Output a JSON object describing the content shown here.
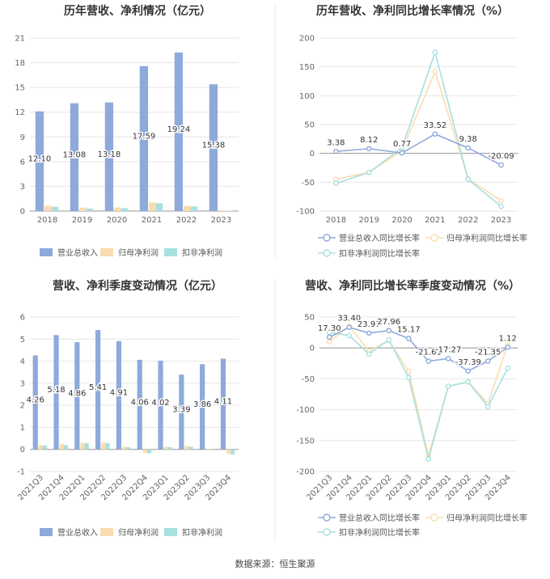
{
  "source": "数据来源：恒生聚源",
  "chart_data": [
    {
      "type": "bar",
      "title": "历年营收、净利情况（亿元）",
      "categories": [
        "2018",
        "2019",
        "2020",
        "2021",
        "2022",
        "2023"
      ],
      "series": [
        {
          "name": "营业总收入",
          "values": [
            12.1,
            13.08,
            13.18,
            17.59,
            19.24,
            15.38
          ],
          "color": "#8eaadb"
        },
        {
          "name": "归母净利润",
          "values": [
            0.65,
            0.42,
            0.45,
            1.05,
            0.62,
            0.08
          ],
          "color": "#fbdcae"
        },
        {
          "name": "扣非净利润",
          "values": [
            0.52,
            0.3,
            0.35,
            0.95,
            0.55,
            0.05
          ],
          "color": "#a7e0e0"
        }
      ],
      "data_labels": [
        "12.10",
        "13.08",
        "13.18",
        "17.59",
        "19.24",
        "15.38"
      ],
      "yticks": [
        0,
        3,
        6,
        9,
        12,
        15,
        18,
        21
      ],
      "ylim": [
        0,
        21
      ],
      "legend": "bottom"
    },
    {
      "type": "line",
      "title": "历年营收、净利同比增长率情况（%）",
      "categories": [
        "2018",
        "2019",
        "2020",
        "2021",
        "2022",
        "2023"
      ],
      "series": [
        {
          "name": "营业总收入同比增长率",
          "values": [
            3.38,
            8.12,
            0.77,
            33.52,
            9.38,
            -20.09
          ],
          "color": "#8eaadb"
        },
        {
          "name": "归母净利润同比增长率",
          "values": [
            -45,
            -33,
            5,
            142,
            -44,
            -82
          ],
          "color": "#fbdcae"
        },
        {
          "name": "扣非净利润同比增长率",
          "values": [
            -52,
            -33,
            10,
            175,
            -45,
            -92
          ],
          "color": "#a7e0e0"
        }
      ],
      "data_labels": [
        "3.38",
        "8.12",
        "0.77",
        "33.52",
        "9.38",
        "-20.09"
      ],
      "yticks": [
        -100,
        -50,
        0,
        50,
        100,
        150,
        200
      ],
      "ylim": [
        -100,
        200
      ],
      "legend": "bottom"
    },
    {
      "type": "bar",
      "title": "营收、净利季度变动情况（亿元）",
      "categories": [
        "2021Q3",
        "2021Q4",
        "2022Q1",
        "2022Q2",
        "2022Q3",
        "2022Q4",
        "2023Q1",
        "2023Q2",
        "2023Q3",
        "2023Q4"
      ],
      "series": [
        {
          "name": "营业总收入",
          "values": [
            4.26,
            5.18,
            4.86,
            5.41,
            4.91,
            4.06,
            4.02,
            3.39,
            3.86,
            4.11
          ],
          "color": "#8eaadb"
        },
        {
          "name": "归母净利润",
          "values": [
            0.2,
            0.24,
            0.3,
            0.3,
            0.12,
            -0.15,
            0.12,
            0.15,
            0.02,
            -0.2
          ],
          "color": "#fbdcae"
        },
        {
          "name": "扣非净利润",
          "values": [
            0.18,
            0.19,
            0.28,
            0.28,
            0.1,
            -0.18,
            0.1,
            0.12,
            0.01,
            -0.22
          ],
          "color": "#a7e0e0"
        }
      ],
      "data_labels": [
        "4.26",
        "5.18",
        "4.86",
        "5.41",
        "4.91",
        "4.06",
        "4.02",
        "3.39",
        "3.86",
        "4.11"
      ],
      "yticks": [
        -1,
        0,
        1,
        2,
        3,
        4,
        5,
        6
      ],
      "ylim": [
        -1,
        6
      ],
      "legend": "bottom"
    },
    {
      "type": "line",
      "title": "营收、净利同比增长率季度变动情况（%）",
      "categories": [
        "2021Q3",
        "2021Q4",
        "2022Q1",
        "2022Q2",
        "2022Q3",
        "2022Q4",
        "2023Q1",
        "2023Q2",
        "2023Q3",
        "2023Q4"
      ],
      "series": [
        {
          "name": "营业总收入同比增长率",
          "values": [
            17.3,
            33.4,
            23.97,
            27.96,
            15.17,
            -21.61,
            -17.27,
            -37.39,
            -21.35,
            1.12
          ],
          "color": "#8eaadb"
        },
        {
          "name": "归母净利润同比增长率",
          "values": [
            10,
            35,
            -5,
            12,
            -38,
            -175,
            -62,
            -55,
            -90,
            5
          ],
          "color": "#fbdcae"
        },
        {
          "name": "扣非净利润同比增长率",
          "values": [
            25,
            20,
            -10,
            13,
            -48,
            -180,
            -62,
            -55,
            -95,
            -33
          ],
          "color": "#a7e0e0"
        }
      ],
      "data_labels": [
        "17.30",
        "33.40",
        "23.97",
        "27.96",
        "15.17",
        "-21.61",
        "-17.27",
        "-37.39",
        "-21.35",
        "1.12"
      ],
      "yticks": [
        -200,
        -150,
        -100,
        -50,
        0,
        50
      ],
      "ylim": [
        -200,
        50
      ],
      "legend": "bottom"
    }
  ]
}
